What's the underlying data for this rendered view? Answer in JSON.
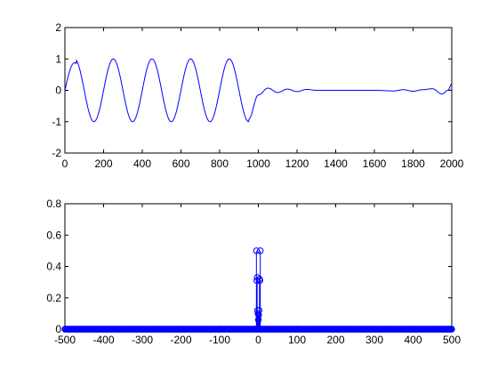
{
  "figure": {
    "background": "#ffffff",
    "line_color": "#0000ff",
    "axes_color": "#000000"
  },
  "chart_data": [
    {
      "type": "line",
      "title": "",
      "xlabel": "",
      "ylabel": "",
      "xlim": [
        0,
        2000
      ],
      "ylim": [
        -2,
        2
      ],
      "xticks": [
        0,
        200,
        400,
        600,
        800,
        1000,
        1200,
        1400,
        1600,
        1800,
        2000
      ],
      "yticks": [
        -2,
        -1,
        0,
        1,
        2
      ],
      "xtick_labels": [
        "0",
        "200",
        "400",
        "600",
        "800",
        "1000",
        "1200",
        "1400",
        "1600",
        "1800",
        "2000"
      ],
      "ytick_labels": [
        "-2",
        "-1",
        "0",
        "1",
        "2"
      ],
      "grid": false,
      "series": [
        {
          "x": [
            0,
            50,
            150,
            250,
            350,
            450,
            550,
            650,
            750,
            850,
            950,
            1000,
            1050,
            1100,
            1150,
            1200,
            1250,
            1300,
            1350,
            1400,
            1500,
            1600,
            1700,
            1750,
            1800,
            1850,
            1900,
            1950,
            1980,
            2000
          ],
          "y": [
            0.25,
            0.88,
            -1.0,
            1.0,
            -1.0,
            1.0,
            -1.0,
            1.0,
            -1.0,
            1.0,
            -0.92,
            -0.15,
            0.07,
            -0.07,
            0.04,
            -0.04,
            0.03,
            0.0,
            0.0,
            0.0,
            0.0,
            0.0,
            -0.02,
            0.02,
            -0.03,
            0.02,
            0.05,
            -0.12,
            0.0,
            0.2
          ]
        }
      ]
    },
    {
      "type": "stem",
      "title": "",
      "xlabel": "",
      "ylabel": "",
      "xlim": [
        -500,
        500
      ],
      "ylim": [
        0,
        0.8
      ],
      "xticks": [
        -500,
        -400,
        -300,
        -200,
        -100,
        0,
        100,
        200,
        300,
        400,
        500
      ],
      "yticks": [
        0,
        0.2,
        0.4,
        0.6,
        0.8
      ],
      "xtick_labels": [
        "-500",
        "-400",
        "-300",
        "-200",
        "-100",
        "0",
        "100",
        "200",
        "300",
        "400",
        "500"
      ],
      "ytick_labels": [
        "0",
        "0.2",
        "0.4",
        "0.6",
        "0.8"
      ],
      "grid": false,
      "baseline_x_range": [
        -500,
        500
      ],
      "baseline_step": 2,
      "baseline_y": 0,
      "series": [
        {
          "x": [
            -5,
            -4,
            -3,
            -2,
            -1,
            0,
            1,
            2,
            3,
            4,
            5
          ],
          "y": [
            0.5,
            0.31,
            0.33,
            0.12,
            0.1,
            0.06,
            0.09,
            0.12,
            0.32,
            0.31,
            0.5
          ]
        }
      ]
    }
  ]
}
